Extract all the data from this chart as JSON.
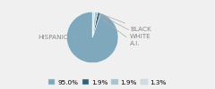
{
  "labels": [
    "HISPANIC",
    "BLACK",
    "WHITE",
    "A.I."
  ],
  "values": [
    95.0,
    1.9,
    1.9,
    1.3
  ],
  "colors": [
    "#7fa8bc",
    "#2e6080",
    "#a8c4d0",
    "#ccdde6"
  ],
  "legend_labels": [
    "95.0%",
    "1.9%",
    "1.9%",
    "1.3%"
  ],
  "startangle": 90,
  "bg_color": "#f0f0f0",
  "label_color": "#888888"
}
